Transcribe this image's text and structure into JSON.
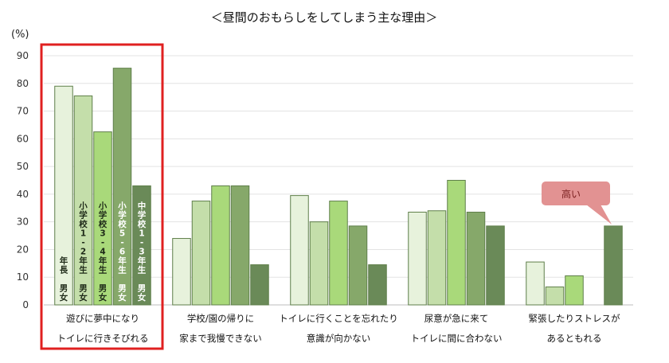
{
  "chart_data": {
    "type": "bar",
    "title": "＜昼間のおもらしをしてしまう主な理由＞",
    "unit": "(%)",
    "ylim": [
      0,
      90
    ],
    "yticks": [
      "0",
      "10",
      "20",
      "30",
      "40",
      "50",
      "60",
      "70",
      "80",
      "90"
    ],
    "grid": true,
    "categories": [
      [
        "遊びに夢中になり",
        "トイレに行きそびれる"
      ],
      [
        "学校/園の帰りに",
        "家まで我慢できない"
      ],
      [
        "トイレに行くことを忘れたり",
        "意識が向かない"
      ],
      [
        "尿意が急に来て",
        "トイレに間に合わない"
      ],
      [
        "緊張したりストレスが",
        "あるともれる"
      ]
    ],
    "series": [
      {
        "name": "年長 男女",
        "label_lines": [
          "年",
          "長",
          "",
          "男",
          "女"
        ],
        "color": "#e7f2dc",
        "values": [
          79,
          24,
          39.5,
          33.5,
          15.5
        ]
      },
      {
        "name": "小学校1-2年生 男女",
        "label_lines": [
          "小",
          "学",
          "校",
          "1",
          "-",
          "2",
          "年",
          "生",
          "",
          "男",
          "女"
        ],
        "color": "#c4deaa",
        "values": [
          75.5,
          37.5,
          30,
          34,
          6.5
        ]
      },
      {
        "name": "小学校3-4年生 男女",
        "label_lines": [
          "小",
          "学",
          "校",
          "3",
          "-",
          "4",
          "年",
          "生",
          "",
          "男",
          "女"
        ],
        "color": "#a9d97a",
        "values": [
          62.5,
          43,
          37.5,
          45,
          10.5
        ]
      },
      {
        "name": "小学校5-6年生 男女",
        "label_lines": [
          "小",
          "学",
          "校",
          "5",
          "-",
          "6",
          "年",
          "生",
          "",
          "男",
          "女"
        ],
        "color": "#86a86a",
        "values": [
          85.5,
          43,
          28.5,
          33.5,
          null
        ]
      },
      {
        "name": "中学校1-3年生 男女",
        "label_lines": [
          "中",
          "学",
          "校",
          "1",
          "-",
          "3",
          "年",
          "生",
          "",
          "男",
          "女"
        ],
        "color": "#6a8a58",
        "values": [
          43,
          14.5,
          14.5,
          28.5,
          28.5
        ]
      }
    ],
    "callout": {
      "text": "高い",
      "color": "#e29292",
      "target_category": 4,
      "target_series": 4
    },
    "highlight": {
      "category": 0,
      "color": "#e02020"
    }
  }
}
